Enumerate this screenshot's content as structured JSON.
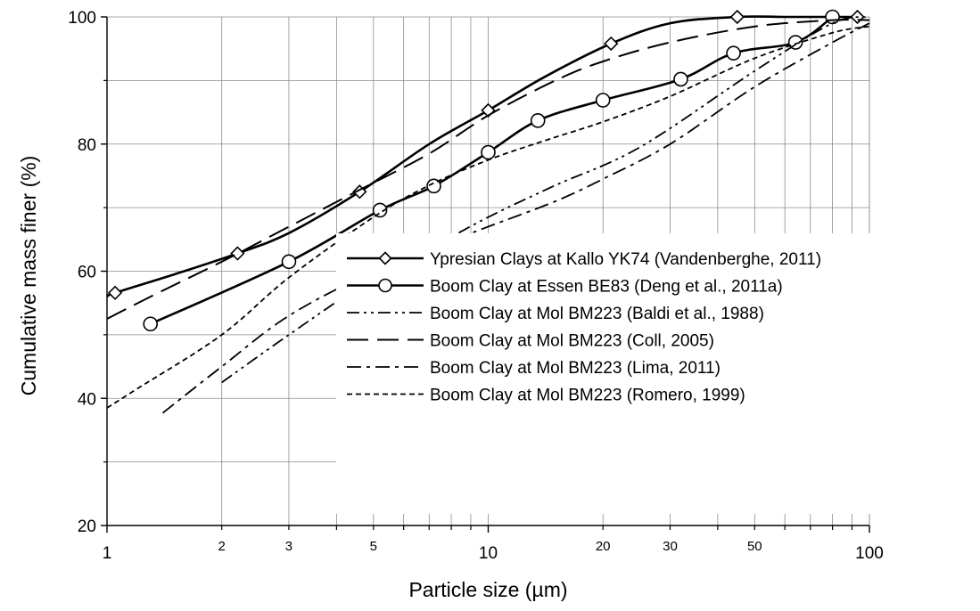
{
  "chart_data": {
    "type": "line",
    "title": "",
    "xlabel": "Particle size (µm)",
    "ylabel": "Cumulative mass finer (%)",
    "xscale": "log",
    "xlim": [
      1,
      100
    ],
    "ylim": [
      20,
      100
    ],
    "x_major_ticks": [
      1,
      10,
      100
    ],
    "x_major_tick_labels": [
      "1",
      "10",
      "100"
    ],
    "x_minor_ticks": [
      2,
      3,
      5,
      20,
      30,
      50
    ],
    "x_minor_tick_labels": [
      "2",
      "3",
      "5",
      "20",
      "30",
      "50"
    ],
    "y_ticks": [
      20,
      40,
      60,
      80,
      100
    ],
    "y_tick_labels": [
      "20",
      "40",
      "60",
      "80",
      "100"
    ],
    "grid": true,
    "legend_position": "center-right",
    "series": [
      {
        "name": "Ypresian Clays at Kallo YK74 (Vandenberghe, 2011)",
        "style": "solid-diamond",
        "x": [
          1,
          1.05,
          1.5,
          2.2,
          3,
          4.6,
          7,
          10,
          14,
          21,
          30,
          45,
          60,
          80,
          93
        ],
        "y": [
          56,
          56.6,
          59.5,
          62.8,
          66,
          72.5,
          80,
          85.3,
          90.5,
          95.8,
          99,
          100,
          100,
          100,
          100
        ],
        "markers_x": [
          1.05,
          2.2,
          4.6,
          10,
          21,
          45,
          93
        ],
        "markers_y": [
          56.6,
          62.8,
          72.5,
          85.3,
          95.8,
          100,
          100
        ]
      },
      {
        "name": "Boom Clay at Essen BE83 (Deng et al., 2011a)",
        "style": "solid-circle",
        "x": [
          1.3,
          3,
          5.2,
          7.2,
          10,
          13.5,
          20,
          32,
          44,
          64,
          80
        ],
        "y": [
          51.7,
          61.5,
          69.6,
          73.4,
          78.7,
          83.7,
          86.9,
          90.2,
          94.3,
          96,
          100
        ],
        "markers_x": [
          1.3,
          3,
          5.2,
          7.2,
          10,
          13.5,
          20,
          32,
          44,
          64,
          80
        ],
        "markers_y": [
          51.7,
          61.5,
          69.6,
          73.4,
          78.7,
          83.7,
          86.9,
          90.2,
          94.3,
          96,
          100
        ]
      },
      {
        "name": "Boom Clay at Mol BM223 (Baldi et al., 1988)",
        "style": "dash-dot-dot",
        "x": [
          2,
          3,
          5,
          7,
          10,
          15,
          25,
          50,
          80,
          100
        ],
        "y": [
          42.5,
          50,
          59,
          63.5,
          68.5,
          73.5,
          79.5,
          91.5,
          99,
          100
        ]
      },
      {
        "name": "Boom Clay at Mol BM223 (Coll, 2005)",
        "style": "long-dash",
        "x": [
          1,
          1.3,
          2,
          3,
          4.5,
          7,
          10,
          15,
          20,
          30,
          50,
          80,
          100
        ],
        "y": [
          52.5,
          56,
          61.5,
          67,
          72.5,
          78.5,
          84.5,
          90,
          93,
          96,
          98.5,
          99.5,
          99.5
        ]
      },
      {
        "name": "Boom Clay at Mol BM223 (Lima, 2011)",
        "style": "dash-dot",
        "x": [
          1.4,
          2,
          3,
          5,
          7,
          10,
          15,
          20,
          30,
          50,
          80,
          100
        ],
        "y": [
          37.7,
          45,
          53,
          60,
          63.5,
          67,
          71,
          74.5,
          80,
          89,
          96,
          99
        ]
      },
      {
        "name": "Boom Clay at Mol BM223 (Romero, 1999)",
        "style": "short-dash",
        "x": [
          1,
          1.2,
          2,
          3,
          5,
          7,
          10,
          14,
          20,
          30,
          50,
          80,
          100
        ],
        "y": [
          38.5,
          41.5,
          50,
          59,
          68.5,
          73.5,
          77.5,
          80.5,
          83.5,
          87.5,
          93.5,
          97.5,
          98.5
        ]
      }
    ]
  }
}
